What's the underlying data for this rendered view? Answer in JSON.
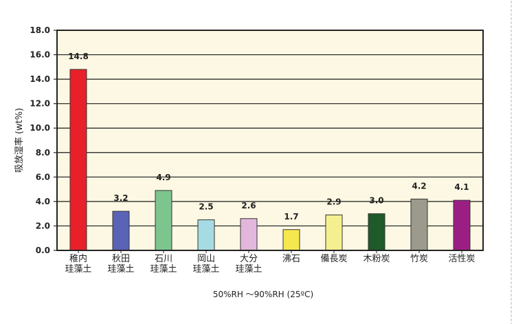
{
  "chart_data": {
    "type": "bar",
    "categories": [
      [
        "稚内",
        "珪藻土"
      ],
      [
        "秋田",
        "珪藻土"
      ],
      [
        "石川",
        "珪藻土"
      ],
      [
        "岡山",
        "珪藻土"
      ],
      [
        "大分",
        "珪藻土"
      ],
      [
        "沸石"
      ],
      [
        "備長炭"
      ],
      [
        "木粉炭"
      ],
      [
        "竹炭"
      ],
      [
        "活性炭"
      ]
    ],
    "values": [
      14.8,
      3.2,
      4.9,
      2.5,
      2.6,
      1.7,
      2.9,
      3.0,
      4.2,
      4.1
    ],
    "value_labels": [
      "14.8",
      "3.2",
      "4.9",
      "2.5",
      "2.6",
      "1.7",
      "2.9",
      "3.0",
      "4.2",
      "4.1"
    ],
    "colors": [
      "#e8202a",
      "#5a63b6",
      "#7cc58f",
      "#a7dbe3",
      "#e3b7dc",
      "#f5e84f",
      "#f5f08f",
      "#1f5a2a",
      "#9b9a8c",
      "#9b1f82"
    ],
    "ylabel": "吸放湿率 (wt%)",
    "xlabel": "50%RH ～90%RH (25ºC)",
    "ylim": [
      0,
      18
    ],
    "yticks": [
      "0.0",
      "2.0",
      "4.0",
      "6.0",
      "8.0",
      "10.0",
      "12.0",
      "14.0",
      "16.0",
      "18.0"
    ],
    "grid": true,
    "plot_background": "#fcf8e3"
  }
}
